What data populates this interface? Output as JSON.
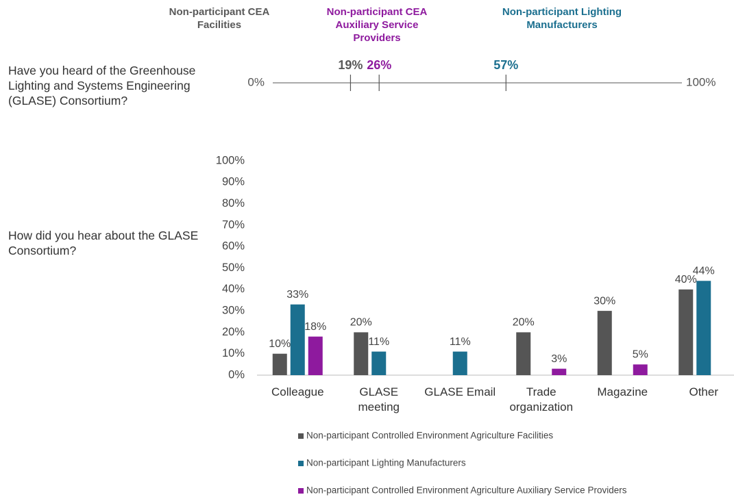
{
  "chart_data": [
    {
      "type": "dot",
      "question": "Have you heard of the Greenhouse Lighting and Systems Engineering (GLASE) Consortium?",
      "xlim": [
        0,
        100
      ],
      "xticks": [
        {
          "value": 0,
          "label": "0%"
        },
        {
          "value": 100,
          "label": "100%"
        }
      ],
      "series": [
        {
          "name": "Non-participant CEA Facilities",
          "color": "#595959",
          "values": [
            19
          ],
          "value_labels": [
            "19%"
          ]
        },
        {
          "name": "Non-participant CEA Auxiliary Service Providers",
          "color": "#8e1a9e",
          "values": [
            26
          ],
          "value_labels": [
            "26%"
          ]
        },
        {
          "name": "Non-participant Lighting Manufacturers",
          "color": "#1b6f8f",
          "values": [
            57
          ],
          "value_labels": [
            "57%"
          ]
        }
      ]
    },
    {
      "type": "bar",
      "question": "How did you hear about the GLASE Consortium?",
      "categories": [
        "Colleague",
        "GLASE meeting",
        "GLASE Email",
        "Trade organization",
        "Magazine",
        "Other"
      ],
      "ylim": [
        0,
        100
      ],
      "yticks": [
        {
          "value": 0,
          "label": "0%"
        },
        {
          "value": 10,
          "label": "10%"
        },
        {
          "value": 20,
          "label": "20%"
        },
        {
          "value": 30,
          "label": "30%"
        },
        {
          "value": 40,
          "label": "40%"
        },
        {
          "value": 50,
          "label": "50%"
        },
        {
          "value": 60,
          "label": "60%"
        },
        {
          "value": 70,
          "label": "70%"
        },
        {
          "value": 80,
          "label": "80%"
        },
        {
          "value": 90,
          "label": "90%"
        },
        {
          "value": 100,
          "label": "100%"
        }
      ],
      "series": [
        {
          "name": "Non-participant Controlled Environment Agriculture Facilities",
          "color": "#555555",
          "values": [
            10,
            20,
            null,
            20,
            30,
            40
          ],
          "value_labels": [
            "10%",
            "20%",
            null,
            "20%",
            "30%",
            "40%"
          ]
        },
        {
          "name": "Non-participant Lighting Manufacturers",
          "color": "#1b6f8f",
          "values": [
            33,
            11,
            11,
            null,
            null,
            44
          ],
          "value_labels": [
            "33%",
            "11%",
            "11%",
            null,
            null,
            "44%"
          ]
        },
        {
          "name": "Non-participant Controlled Environment Agriculture Auxiliary Service Providers",
          "color": "#8e1a9e",
          "values": [
            18,
            null,
            null,
            3,
            5,
            null
          ],
          "value_labels": [
            "18%",
            null,
            null,
            "3%",
            "5%",
            null
          ]
        }
      ]
    }
  ]
}
